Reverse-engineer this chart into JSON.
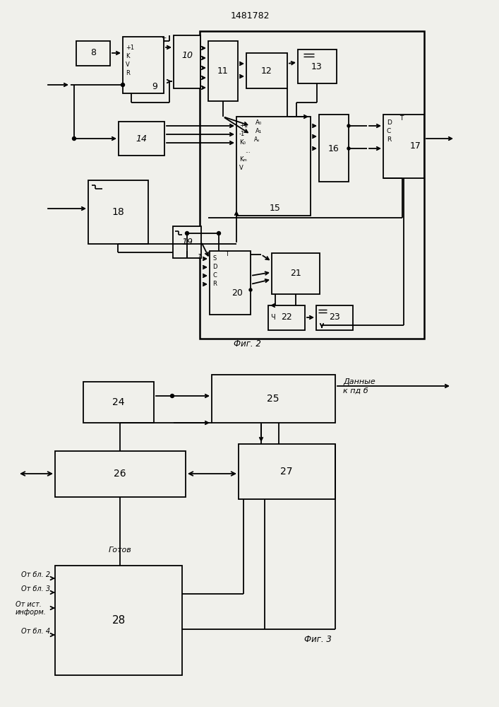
{
  "title": "1481782",
  "bg": "#f5f5f0",
  "fig2_label": "Фиг. 2",
  "fig3_label": "Фиг. 3"
}
